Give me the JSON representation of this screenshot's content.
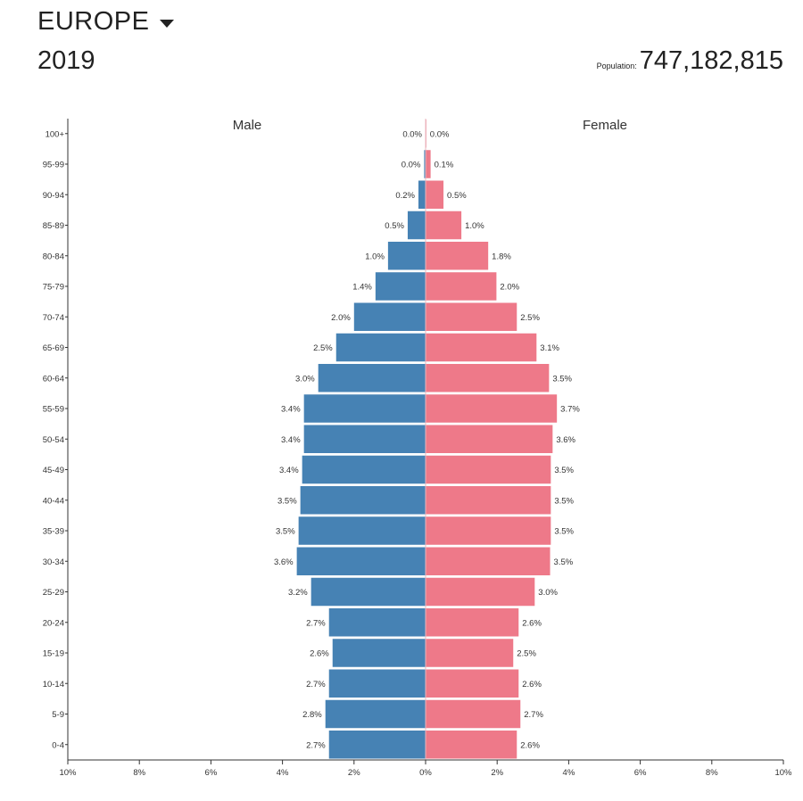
{
  "header": {
    "region": "EUROPE",
    "year": "2019",
    "population_label": "Population:",
    "population_value": "747,182,815"
  },
  "colors": {
    "male": "#4682b4",
    "female": "#ee7989",
    "axis": "#333333"
  },
  "chart_data": {
    "type": "bar",
    "title": "",
    "left_label": "Male",
    "right_label": "Female",
    "xlim": [
      -10,
      10
    ],
    "x_ticks": [
      -10,
      -8,
      -6,
      -4,
      -2,
      0,
      2,
      4,
      6,
      8,
      10
    ],
    "x_tick_labels": [
      "10%",
      "8%",
      "6%",
      "4%",
      "2%",
      "0%",
      "2%",
      "4%",
      "6%",
      "8%",
      "10%"
    ],
    "categories": [
      "100+",
      "95-99",
      "90-94",
      "85-89",
      "80-84",
      "75-79",
      "70-74",
      "65-69",
      "60-64",
      "55-59",
      "50-54",
      "45-49",
      "40-44",
      "35-39",
      "30-34",
      "25-29",
      "20-24",
      "15-19",
      "10-14",
      "5-9",
      "0-4"
    ],
    "series": [
      {
        "name": "Male",
        "values": [
          0.0,
          0.04,
          0.2,
          0.5,
          1.05,
          1.4,
          2.0,
          2.5,
          3.0,
          3.4,
          3.4,
          3.45,
          3.5,
          3.55,
          3.6,
          3.2,
          2.7,
          2.6,
          2.7,
          2.8,
          2.7
        ],
        "labels": [
          "0.0%",
          "0.0%",
          "0.2%",
          "0.5%",
          "1.0%",
          "1.4%",
          "2.0%",
          "2.5%",
          "3.0%",
          "3.4%",
          "3.4%",
          "3.4%",
          "3.5%",
          "3.5%",
          "3.6%",
          "3.2%",
          "2.7%",
          "2.6%",
          "2.7%",
          "2.8%",
          "2.7%"
        ]
      },
      {
        "name": "Female",
        "values": [
          0.02,
          0.14,
          0.5,
          1.0,
          1.75,
          1.98,
          2.55,
          3.1,
          3.45,
          3.67,
          3.55,
          3.5,
          3.5,
          3.5,
          3.48,
          3.05,
          2.6,
          2.45,
          2.6,
          2.65,
          2.55
        ],
        "labels": [
          "0.0%",
          "0.1%",
          "0.5%",
          "1.0%",
          "1.8%",
          "2.0%",
          "2.5%",
          "3.1%",
          "3.5%",
          "3.7%",
          "3.6%",
          "3.5%",
          "3.5%",
          "3.5%",
          "3.5%",
          "3.0%",
          "2.6%",
          "2.5%",
          "2.6%",
          "2.7%",
          "2.6%"
        ]
      }
    ]
  }
}
